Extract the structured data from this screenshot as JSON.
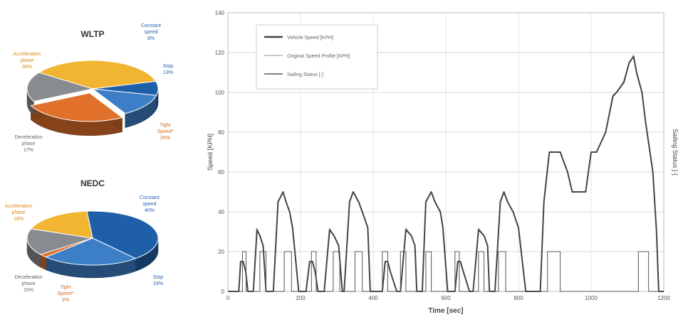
{
  "chart_data": [
    {
      "type": "pie",
      "title": "WLTP",
      "slices": [
        {
          "label": "Acceleration phase",
          "value": 36,
          "value_label": "36%",
          "color": "#f1b532"
        },
        {
          "label": "Constant speed",
          "value": 8,
          "value_label": "8%",
          "color": "#1f5fa8"
        },
        {
          "label": "Stop",
          "value": 13,
          "value_label": "13%",
          "color": "#3c7fc6"
        },
        {
          "label": "Tight Speed*",
          "value": 26,
          "value_label": "26%",
          "color": "#e0702a"
        },
        {
          "label": "Deceleration phase",
          "value": 17,
          "value_label": "17%",
          "color": "#888c90"
        }
      ]
    },
    {
      "type": "pie",
      "title": "NEDC",
      "slices": [
        {
          "label": "Constant speed",
          "value": 40,
          "value_label": "40%",
          "color": "#1f5fa8"
        },
        {
          "label": "Stop",
          "value": 24,
          "value_label": "24%",
          "color": "#3c7fc6"
        },
        {
          "label": "Tight Speed*",
          "value": 2,
          "value_label": "2%",
          "color": "#e0702a"
        },
        {
          "label": "Deceleration phase",
          "value": 16,
          "value_label": "16%",
          "color": "#888c90"
        },
        {
          "label": "Acceleration phase",
          "value": 18,
          "value_label": "18%",
          "color": "#f1b532"
        }
      ]
    },
    {
      "type": "line",
      "xlabel": "Time [sec]",
      "ylabel": "Speed [KPH]",
      "y2label": "Sailing Status [-]",
      "xlim": [
        0,
        1200
      ],
      "ylim": [
        0,
        140
      ],
      "xticks": [
        0,
        200,
        400,
        600,
        800,
        1000,
        1200
      ],
      "yticks": [
        0,
        20,
        40,
        60,
        80,
        100,
        120,
        140
      ],
      "grid": true,
      "legend_position": "top-left",
      "series": [
        {
          "name": "Vehicle Speed [KPH]",
          "color": "#444444",
          "x": [
            0,
            30,
            35,
            42,
            49,
            55,
            70,
            80,
            88,
            97,
            105,
            115,
            125,
            138,
            152,
            160,
            170,
            178,
            195,
            215,
            225,
            233,
            240,
            248,
            265,
            280,
            292,
            305,
            315,
            320,
            335,
            345,
            360,
            370,
            385,
            392,
            405,
            425,
            433,
            440,
            447,
            465,
            475,
            490,
            505,
            515,
            520,
            535,
            545,
            560,
            570,
            585,
            592,
            605,
            625,
            633,
            640,
            648,
            665,
            675,
            690,
            705,
            715,
            720,
            735,
            750,
            760,
            770,
            785,
            800,
            820,
            840,
            850,
            860,
            870,
            885,
            915,
            935,
            948,
            960,
            975,
            985,
            1000,
            1015,
            1040,
            1060,
            1070,
            1090,
            1105,
            1117,
            1125,
            1140,
            1150,
            1170,
            1180,
            1186,
            1200
          ],
          "y": [
            0,
            0,
            15,
            15,
            10,
            0,
            0,
            31,
            28,
            23,
            0,
            0,
            0,
            45,
            50,
            45,
            40,
            32,
            0,
            0,
            15,
            15,
            10,
            0,
            0,
            31,
            28,
            23,
            0,
            0,
            45,
            50,
            45,
            40,
            32,
            0,
            0,
            0,
            15,
            15,
            10,
            0,
            0,
            31,
            28,
            23,
            0,
            0,
            45,
            50,
            45,
            40,
            32,
            0,
            0,
            15,
            15,
            10,
            0,
            0,
            31,
            28,
            23,
            0,
            0,
            45,
            50,
            45,
            40,
            32,
            0,
            0,
            0,
            0,
            45,
            70,
            70,
            60,
            50,
            50,
            50,
            50,
            70,
            70,
            80,
            98,
            100,
            105,
            115,
            118,
            110,
            100,
            85,
            60,
            30,
            0,
            0
          ]
        },
        {
          "name": "Original Speed Profile [KPH]",
          "color": "#b8b8b8",
          "x": [
            0,
            30,
            35,
            42,
            49,
            55,
            70,
            80,
            88,
            97,
            105,
            115,
            125,
            138,
            152,
            160,
            170,
            178,
            195,
            215,
            225,
            233,
            240,
            248,
            265,
            280,
            292,
            305,
            315,
            320,
            335,
            345,
            360,
            370,
            385,
            392,
            405,
            425,
            433,
            440,
            447,
            465,
            475,
            490,
            505,
            515,
            520,
            535,
            545,
            560,
            570,
            585,
            592,
            605,
            625,
            633,
            640,
            648,
            665,
            675,
            690,
            705,
            715,
            720,
            735,
            750,
            760,
            770,
            785,
            800,
            820,
            840,
            850,
            860,
            870,
            885,
            915,
            935,
            948,
            960,
            975,
            985,
            1000,
            1015,
            1040,
            1060,
            1070,
            1090,
            1105,
            1117,
            1125,
            1140,
            1150,
            1170,
            1180,
            1186,
            1200
          ],
          "y": [
            0,
            0,
            15,
            15,
            10,
            0,
            0,
            32,
            28,
            23,
            0,
            0,
            0,
            45,
            50,
            45,
            40,
            32,
            0,
            0,
            15,
            15,
            10,
            0,
            0,
            32,
            28,
            23,
            0,
            0,
            45,
            50,
            45,
            40,
            32,
            0,
            0,
            0,
            15,
            15,
            10,
            0,
            0,
            32,
            28,
            23,
            0,
            0,
            45,
            50,
            45,
            40,
            32,
            0,
            0,
            15,
            15,
            10,
            0,
            0,
            32,
            28,
            23,
            0,
            0,
            45,
            50,
            45,
            40,
            32,
            0,
            0,
            0,
            0,
            45,
            70,
            70,
            60,
            50,
            50,
            50,
            50,
            70,
            70,
            80,
            99,
            100,
            106,
            115,
            119,
            110,
            100,
            85,
            60,
            30,
            0,
            0
          ]
        },
        {
          "name": "Sailing Status [-]",
          "color": "#555555",
          "x": [
            0,
            40,
            40,
            50,
            50,
            88,
            88,
            105,
            105,
            155,
            155,
            175,
            175,
            230,
            230,
            243,
            243,
            290,
            290,
            308,
            308,
            350,
            350,
            370,
            370,
            425,
            425,
            440,
            440,
            475,
            475,
            490,
            490,
            545,
            545,
            560,
            560,
            625,
            625,
            637,
            637,
            690,
            690,
            705,
            705,
            745,
            745,
            765,
            765,
            880,
            880,
            915,
            915,
            1130,
            1130,
            1158,
            1158,
            1200
          ],
          "y": [
            0,
            0,
            20,
            20,
            0,
            0,
            20,
            20,
            0,
            0,
            20,
            20,
            0,
            0,
            20,
            20,
            0,
            0,
            20,
            20,
            0,
            0,
            20,
            20,
            0,
            0,
            20,
            20,
            0,
            0,
            20,
            20,
            0,
            0,
            20,
            20,
            0,
            0,
            20,
            20,
            0,
            0,
            20,
            20,
            0,
            0,
            20,
            20,
            0,
            0,
            20,
            20,
            0,
            0,
            20,
            20,
            0,
            0
          ]
        }
      ]
    }
  ]
}
